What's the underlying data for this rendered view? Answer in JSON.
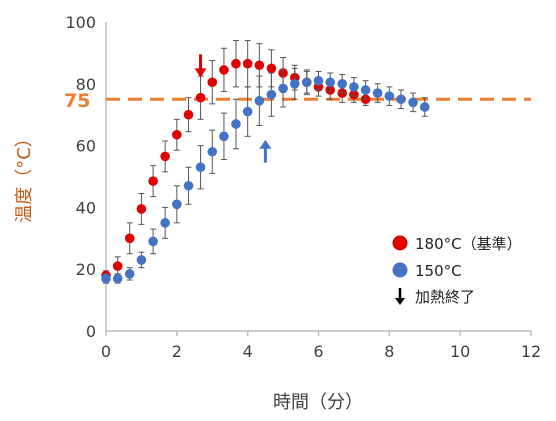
{
  "chart_data": {
    "type": "scatter",
    "xlabel": "時間（分）",
    "ylabel": "温度（°C）",
    "xlim": [
      0,
      12
    ],
    "ylim": [
      0,
      100
    ],
    "xticks": [
      "0",
      "2",
      "4",
      "6",
      "8",
      "10",
      "12"
    ],
    "yticks": [
      "0",
      "20",
      "40",
      "60",
      "80",
      "100"
    ],
    "grid": false,
    "legend_position": "bottom-right",
    "reference_line": {
      "y": 75,
      "label": "75",
      "color": "#ed7d31",
      "style": "dashed"
    },
    "series": [
      {
        "name": "180°C（基準）",
        "color": "#e00000",
        "x": [
          0,
          0.33,
          0.67,
          1.0,
          1.33,
          1.67,
          2.0,
          2.33,
          2.67,
          3.0,
          3.33,
          3.67,
          4.0,
          4.33,
          4.67,
          5.0,
          5.33,
          5.67,
          6.0,
          6.33,
          6.67,
          7.0,
          7.33
        ],
        "y": [
          18,
          21,
          30,
          39.5,
          48.5,
          56.5,
          63.5,
          70,
          75.5,
          80.5,
          84.5,
          86.5,
          86.5,
          86,
          85,
          83.5,
          82,
          80.5,
          79,
          78,
          77,
          76.5,
          75
        ],
        "err": [
          1.5,
          3,
          5,
          5,
          5,
          5,
          5,
          5.5,
          7,
          7,
          7,
          7.5,
          7.5,
          7,
          6,
          5,
          4,
          3.5,
          3,
          3,
          3,
          2.5,
          2
        ]
      },
      {
        "name": "150°C",
        "color": "#4472c4",
        "x": [
          0,
          0.33,
          0.67,
          1.0,
          1.33,
          1.67,
          2.0,
          2.33,
          2.67,
          3.0,
          3.33,
          3.67,
          4.0,
          4.33,
          4.67,
          5.0,
          5.33,
          5.67,
          6.0,
          6.33,
          6.67,
          7.0,
          7.33,
          7.67,
          8.0,
          8.33,
          8.67,
          9.0
        ],
        "y": [
          17,
          17,
          18.5,
          23,
          29,
          35,
          41,
          47,
          53,
          58,
          63,
          67,
          71,
          74.5,
          76.5,
          78.5,
          80,
          80.5,
          81,
          80.5,
          80,
          79,
          78,
          77,
          76,
          75,
          74,
          72.5
        ],
        "err": [
          1.5,
          1.5,
          2,
          2.5,
          4,
          5,
          6,
          6,
          7,
          7,
          7.5,
          8,
          8,
          8,
          7,
          6,
          5,
          4,
          3,
          3,
          3,
          3,
          3,
          3,
          3,
          3,
          3,
          3
        ]
      }
    ],
    "annotations": [
      {
        "type": "arrow-down",
        "x": 2.67,
        "y": 85,
        "color": "#e00000"
      },
      {
        "type": "arrow-up",
        "x": 4.5,
        "y": 59,
        "color": "#4472c4"
      }
    ],
    "legend": [
      {
        "label": "180°C（基準）",
        "marker": "circle",
        "color": "#e00000"
      },
      {
        "label": "150°C",
        "marker": "circle",
        "color": "#4472c4"
      },
      {
        "label": "加熱終了",
        "marker": "arrow-down",
        "color": "#000000"
      }
    ]
  }
}
